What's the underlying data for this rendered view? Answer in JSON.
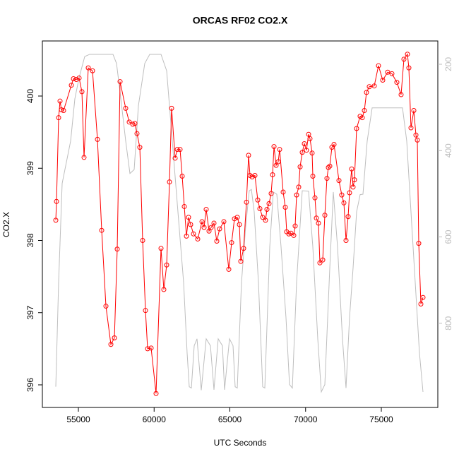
{
  "chart_data": {
    "type": "line",
    "title": "ORCAS RF02 CO2.X",
    "x_label": "UTC Seconds",
    "y_label": "CO2.X",
    "xlim": [
      52622,
      78730
    ],
    "ylim": [
      395.687,
      400.763
    ],
    "y2lim": [
      995,
      146
    ],
    "xticks": [
      55000,
      60000,
      65000,
      70000,
      75000
    ],
    "yticks": [
      396,
      397,
      398,
      399,
      400
    ],
    "y2ticks": [
      200,
      400,
      600,
      800
    ],
    "series": [
      {
        "color": "#bebebe",
        "axis": "y2",
        "markers": false,
        "x": [
          53508,
          53695,
          53928,
          54487,
          54767,
          55047,
          55420,
          55746,
          57284,
          57517,
          57751,
          58124,
          58403,
          58683,
          58963,
          59382,
          59709,
          60455,
          60828,
          61200,
          61573,
          61946,
          62179,
          62319,
          62459,
          62646,
          62832,
          63112,
          63438,
          63718,
          63951,
          64231,
          64510,
          64650,
          64977,
          65210,
          65350,
          65490,
          65769,
          66049,
          66282,
          66422,
          66608,
          66888,
          67168,
          67308,
          67634,
          67867,
          68100,
          68380,
          68706,
          68939,
          69126,
          69406,
          69779,
          70198,
          70478,
          70804,
          71037,
          71271,
          71597,
          71830,
          72110,
          72436,
          72669,
          72902,
          73135,
          73368,
          73601,
          73788,
          74067,
          74394,
          76399,
          76678,
          76958,
          77238,
          77518,
          77751
        ],
        "values": [
          947,
          705,
          476,
          378,
          280,
          231,
          182,
          177,
          177,
          198,
          264,
          378,
          453,
          444,
          296,
          198,
          177,
          177,
          215,
          378,
          542,
          705,
          869,
          947,
          950,
          852,
          836,
          955,
          836,
          852,
          954,
          836,
          852,
          954,
          836,
          852,
          947,
          950,
          705,
          574,
          493,
          490,
          542,
          705,
          947,
          950,
          623,
          496,
          501,
          623,
          787,
          942,
          950,
          705,
          493,
          494,
          623,
          836,
          959,
          942,
          672,
          496,
          623,
          836,
          950,
          787,
          672,
          542,
          502,
          501,
          378,
          301,
          301,
          378,
          542,
          705,
          869,
          959
        ]
      },
      {
        "color": "#ff0000",
        "axis": "y",
        "markers": true,
        "x": [
          53508,
          53555,
          53695,
          53788,
          53881,
          54021,
          54534,
          54674,
          54860,
          55047,
          55233,
          55373,
          55653,
          55932,
          56259,
          56538,
          56818,
          57145,
          57378,
          57564,
          57751,
          58124,
          58357,
          58590,
          58730,
          58869,
          59056,
          59242,
          59429,
          59569,
          59802,
          60128,
          60455,
          60641,
          60828,
          61014,
          61154,
          61387,
          61527,
          61713,
          61853,
          61993,
          62133,
          62273,
          62413,
          62599,
          62879,
          63159,
          63298,
          63438,
          63625,
          63765,
          63951,
          64138,
          64324,
          64604,
          64930,
          65117,
          65303,
          65490,
          65630,
          65723,
          65909,
          66096,
          66236,
          66329,
          66469,
          66655,
          66842,
          66981,
          67168,
          67354,
          67448,
          67587,
          67727,
          67820,
          67914,
          68054,
          68193,
          68287,
          68520,
          68660,
          68753,
          68893,
          69033,
          69219,
          69312,
          69406,
          69546,
          69639,
          69779,
          69918,
          70058,
          70198,
          70291,
          70431,
          70478,
          70618,
          70711,
          70851,
          70944,
          71131,
          71271,
          71410,
          71504,
          71597,
          71737,
          71877,
          72203,
          72389,
          72529,
          72669,
          72809,
          72902,
          73042,
          73135,
          73228,
          73368,
          73601,
          73741,
          73881,
          74021,
          74207,
          74533,
          74813,
          75093,
          75419,
          75699,
          76025,
          76305,
          76492,
          76725,
          76818,
          76958,
          77145,
          77285,
          77378,
          77471,
          77611,
          77751
        ],
        "values": [
          398.28,
          398.54,
          399.7,
          399.93,
          399.81,
          399.8,
          400.15,
          400.24,
          400.23,
          400.25,
          400.06,
          399.15,
          400.39,
          400.35,
          399.4,
          398.14,
          397.09,
          396.56,
          396.65,
          397.88,
          400.2,
          399.83,
          399.64,
          399.61,
          399.62,
          399.48,
          399.29,
          398.0,
          397.03,
          396.5,
          396.51,
          395.88,
          397.89,
          397.32,
          397.66,
          398.81,
          399.83,
          399.14,
          399.26,
          399.26,
          398.89,
          398.47,
          398.06,
          398.32,
          398.22,
          398.09,
          398.02,
          398.26,
          398.18,
          398.43,
          398.13,
          398.18,
          398.24,
          397.99,
          398.16,
          398.26,
          397.6,
          397.97,
          398.3,
          398.32,
          398.22,
          397.71,
          397.89,
          398.53,
          399.18,
          398.9,
          398.88,
          398.9,
          398.56,
          398.44,
          398.32,
          398.28,
          398.43,
          398.51,
          398.65,
          398.91,
          399.3,
          399.04,
          399.09,
          399.26,
          398.67,
          398.46,
          398.12,
          398.09,
          398.1,
          398.07,
          398.2,
          398.63,
          398.74,
          399.02,
          399.22,
          399.34,
          399.25,
          399.47,
          399.41,
          399.21,
          398.89,
          398.59,
          398.31,
          398.24,
          397.69,
          397.73,
          398.35,
          398.86,
          399.01,
          399.03,
          399.29,
          399.33,
          398.83,
          398.63,
          398.52,
          398.0,
          398.33,
          398.66,
          398.99,
          398.74,
          398.84,
          399.55,
          399.72,
          399.7,
          399.8,
          400.05,
          400.13,
          400.14,
          400.42,
          400.22,
          400.33,
          400.31,
          400.19,
          400.02,
          400.51,
          400.58,
          400.39,
          399.56,
          399.8,
          399.46,
          399.39,
          397.96,
          397.12,
          397.21
        ]
      }
    ]
  }
}
